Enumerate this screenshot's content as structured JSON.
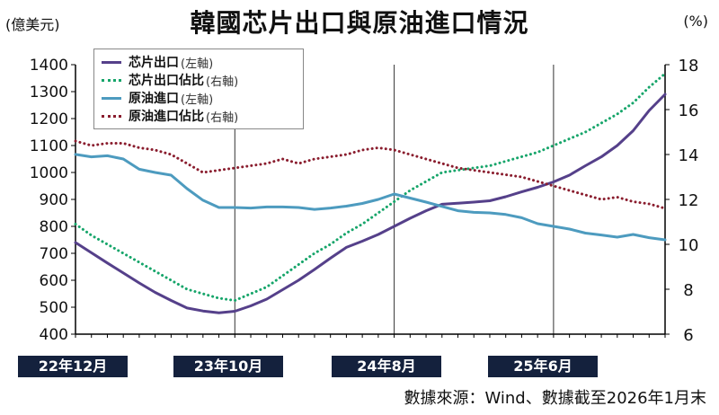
{
  "chart_data": {
    "type": "line",
    "title": "韓國芯片出口與原油進口情況",
    "left_unit": "(億美元)",
    "right_unit": "(%)",
    "x_tick_labels": [
      "22年12月",
      "23年10月",
      "24年8月",
      "25年6月"
    ],
    "x_tick_indices": [
      0,
      10,
      20,
      30
    ],
    "x_count": 38,
    "y_left": {
      "min": 400,
      "max": 1400,
      "ticks": [
        400,
        500,
        600,
        700,
        800,
        900,
        1000,
        1100,
        1200,
        1300,
        1400
      ]
    },
    "y_right": {
      "min": 6,
      "max": 18,
      "ticks": [
        6,
        8,
        10,
        12,
        14,
        16,
        18
      ]
    },
    "grid": "vertical",
    "legend_position": "top-left",
    "series": [
      {
        "name": "芯片出口",
        "axis_label": "(左軸)",
        "axis": "left",
        "style": "solid",
        "color": "#55408a",
        "values": [
          740,
          702,
          664,
          627,
          590,
          555,
          525,
          497,
          486,
          479,
          485,
          505,
          530,
          565,
          600,
          640,
          682,
          722,
          745,
          770,
          800,
          830,
          858,
          882,
          886,
          890,
          895,
          910,
          928,
          945,
          965,
          990,
          1025,
          1058,
          1100,
          1155,
          1230,
          1290
        ]
      },
      {
        "name": "芯片出口佔比",
        "axis_label": "(右軸)",
        "axis": "right",
        "style": "dotted",
        "color": "#16a56a",
        "values": [
          10.9,
          10.4,
          10.0,
          9.6,
          9.2,
          8.8,
          8.4,
          8.0,
          7.8,
          7.6,
          7.5,
          7.8,
          8.1,
          8.6,
          9.1,
          9.6,
          10.0,
          10.5,
          10.9,
          11.4,
          11.9,
          12.4,
          12.8,
          13.2,
          13.3,
          13.4,
          13.5,
          13.7,
          13.9,
          14.1,
          14.4,
          14.7,
          15.0,
          15.4,
          15.8,
          16.3,
          17.0,
          17.6
        ]
      },
      {
        "name": "原油進口",
        "axis_label": "(左軸)",
        "axis": "left",
        "style": "solid",
        "color": "#4d9bbf",
        "values": [
          1067,
          1058,
          1062,
          1050,
          1012,
          1000,
          990,
          940,
          897,
          870,
          870,
          868,
          872,
          872,
          870,
          863,
          868,
          875,
          885,
          900,
          920,
          905,
          890,
          874,
          858,
          852,
          850,
          844,
          832,
          810,
          800,
          790,
          775,
          768,
          760,
          770,
          758,
          750
        ]
      },
      {
        "name": "原油進口佔比",
        "axis_label": "(右軸)",
        "axis": "right",
        "style": "dotted",
        "color": "#8a1d2e",
        "values": [
          14.6,
          14.4,
          14.5,
          14.5,
          14.3,
          14.2,
          14.0,
          13.6,
          13.2,
          13.3,
          13.4,
          13.5,
          13.6,
          13.8,
          13.6,
          13.8,
          13.9,
          14.0,
          14.2,
          14.3,
          14.2,
          14.0,
          13.8,
          13.6,
          13.4,
          13.3,
          13.2,
          13.1,
          13.0,
          12.8,
          12.6,
          12.4,
          12.2,
          12.0,
          12.1,
          11.9,
          11.8,
          11.6
        ]
      }
    ]
  },
  "source_text": "數據來源：Wind、數據截至2026年1月末"
}
